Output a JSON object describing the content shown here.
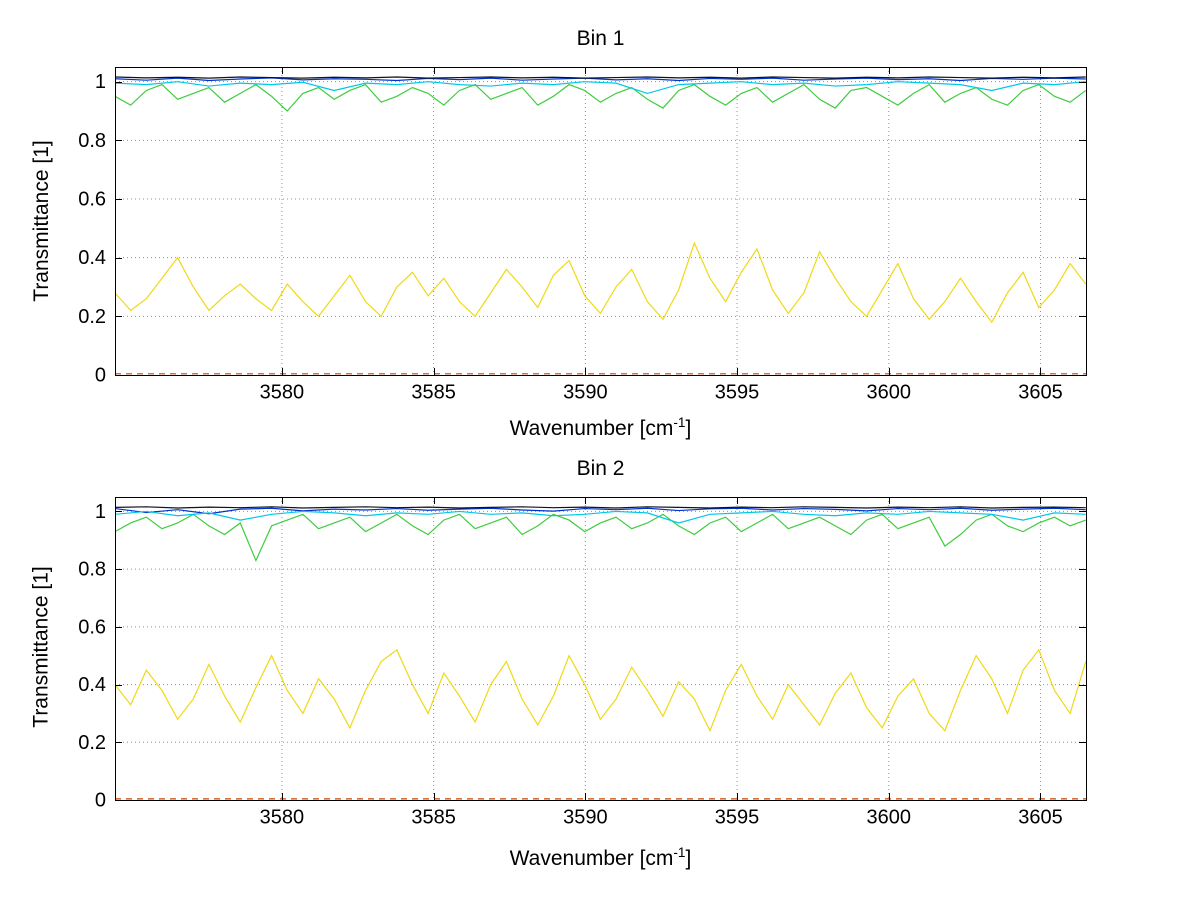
{
  "figure": {
    "background": "#ffffff",
    "axis_color": "#000000",
    "grid_color": "#6e6e6e"
  },
  "chart_data": [
    {
      "type": "line",
      "title": "Bin 1",
      "xlabel": {
        "pre": "Wavenumber [cm",
        "sup": "-1",
        "post": "]"
      },
      "ylabel": "Transmittance [1]",
      "xlim": [
        3574.5,
        3606.5
      ],
      "ylim": [
        0,
        1.05
      ],
      "xticks": [
        3580,
        3585,
        3590,
        3595,
        3600,
        3605
      ],
      "xtick_labels": [
        "3580",
        "3585",
        "3590",
        "3595",
        "3600",
        "3605"
      ],
      "yticks": [
        0,
        0.2,
        0.4,
        0.6,
        0.8,
        1
      ],
      "ytick_labels": [
        "0",
        "0.2",
        "0.4",
        "0.6",
        "0.8",
        "1"
      ],
      "grid": true,
      "legend": null,
      "series": [
        {
          "name": "series-blue",
          "color": "#0033cc",
          "dashed": false,
          "x_start": 3574.5,
          "x_step": 1.032,
          "values": [
            1.01,
            1.005,
            1.012,
            1.004,
            1.009,
            1.013,
            1.006,
            1.01,
            1.008,
            1.004,
            1.011,
            1.007,
            1.012,
            1.005,
            1.009,
            1.012,
            1.006,
            1.01,
            1.004,
            1.011,
            1.008,
            1.012,
            1.005,
            1.009,
            1.012,
            1.007,
            1.01,
            1.004,
            1.011,
            1.008,
            1.012,
            1.009
          ]
        },
        {
          "name": "series-green",
          "color": "#3fcc3f",
          "dashed": false,
          "x_start": 3574.5,
          "x_step": 0.516,
          "values": [
            0.95,
            0.92,
            0.97,
            0.99,
            0.94,
            0.96,
            0.98,
            0.93,
            0.96,
            0.99,
            0.95,
            0.9,
            0.96,
            0.98,
            0.94,
            0.97,
            0.99,
            0.93,
            0.95,
            0.98,
            0.96,
            0.92,
            0.97,
            0.99,
            0.94,
            0.96,
            0.98,
            0.92,
            0.95,
            0.99,
            0.97,
            0.93,
            0.96,
            0.98,
            0.94,
            0.91,
            0.97,
            0.99,
            0.95,
            0.92,
            0.96,
            0.98,
            0.93,
            0.96,
            0.99,
            0.94,
            0.91,
            0.97,
            0.98,
            0.95,
            0.92,
            0.96,
            0.99,
            0.93,
            0.96,
            0.98,
            0.94,
            0.92,
            0.97,
            0.99,
            0.95,
            0.93,
            0.97
          ]
        },
        {
          "name": "series-red",
          "color": "#cc4400",
          "dashed": true,
          "x_start": 3574.5,
          "x_step": 32,
          "values": [
            0.004,
            0.004
          ]
        },
        {
          "name": "series-cyan",
          "color": "#00c8e8",
          "dashed": false,
          "x_start": 3574.5,
          "x_step": 1.032,
          "values": [
            0.995,
            0.99,
            1.0,
            0.985,
            0.995,
            0.99,
            0.998,
            0.97,
            0.995,
            0.99,
            1.0,
            0.99,
            0.985,
            0.995,
            0.99,
            1.0,
            0.995,
            0.96,
            0.99,
            0.995,
            1.0,
            0.99,
            0.995,
            0.985,
            0.99,
            1.0,
            0.995,
            0.99,
            0.97,
            0.995,
            0.99,
            1.0
          ]
        },
        {
          "name": "series-yellow",
          "color": "#efd915",
          "dashed": false,
          "x_start": 3574.5,
          "x_step": 0.516,
          "values": [
            0.28,
            0.22,
            0.26,
            0.33,
            0.4,
            0.3,
            0.22,
            0.27,
            0.31,
            0.26,
            0.22,
            0.31,
            0.25,
            0.2,
            0.27,
            0.34,
            0.25,
            0.2,
            0.3,
            0.35,
            0.27,
            0.33,
            0.25,
            0.2,
            0.28,
            0.36,
            0.3,
            0.23,
            0.34,
            0.39,
            0.27,
            0.21,
            0.3,
            0.36,
            0.25,
            0.19,
            0.29,
            0.45,
            0.33,
            0.25,
            0.35,
            0.43,
            0.29,
            0.21,
            0.28,
            0.42,
            0.33,
            0.25,
            0.2,
            0.29,
            0.38,
            0.26,
            0.19,
            0.25,
            0.33,
            0.25,
            0.18,
            0.28,
            0.35,
            0.23,
            0.29,
            0.38,
            0.31
          ]
        },
        {
          "name": "series-black",
          "color": "#10131a",
          "dashed": false,
          "x_start": 3574.5,
          "x_step": 1.032,
          "values": [
            1.016,
            1.013,
            1.015,
            1.012,
            1.016,
            1.014,
            1.012,
            1.015,
            1.013,
            1.016,
            1.012,
            1.014,
            1.016,
            1.013,
            1.015,
            1.012,
            1.014,
            1.016,
            1.013,
            1.015,
            1.012,
            1.016,
            1.014,
            1.012,
            1.015,
            1.013,
            1.016,
            1.014,
            1.012,
            1.015,
            1.013,
            1.016
          ]
        }
      ]
    },
    {
      "type": "line",
      "title": "Bin 2",
      "xlabel": {
        "pre": "Wavenumber [cm",
        "sup": "-1",
        "post": "]"
      },
      "ylabel": "Transmittance [1]",
      "xlim": [
        3574.5,
        3606.5
      ],
      "ylim": [
        0,
        1.05
      ],
      "xticks": [
        3580,
        3585,
        3590,
        3595,
        3600,
        3605
      ],
      "xtick_labels": [
        "3580",
        "3585",
        "3590",
        "3595",
        "3600",
        "3605"
      ],
      "yticks": [
        0,
        0.2,
        0.4,
        0.6,
        0.8,
        1
      ],
      "ytick_labels": [
        "0",
        "0.2",
        "0.4",
        "0.6",
        "0.8",
        "1"
      ],
      "grid": true,
      "legend": null,
      "series": [
        {
          "name": "series-blue",
          "color": "#0033cc",
          "dashed": false,
          "x_start": 3574.5,
          "x_step": 1.032,
          "values": [
            1.01,
            0.996,
            1.006,
            0.992,
            1.008,
            1.011,
            1.002,
            1.008,
            1.005,
            1.01,
            1.004,
            1.008,
            1.011,
            1.005,
            1.001,
            1.01,
            1.006,
            1.011,
            1.003,
            1.009,
            1.011,
            1.005,
            1.01,
            1.007,
            1.002,
            1.01,
            1.006,
            1.011,
            1.004,
            1.008,
            1.011,
            1.006
          ]
        },
        {
          "name": "series-green",
          "color": "#3fcc3f",
          "dashed": false,
          "x_start": 3574.5,
          "x_step": 0.516,
          "values": [
            0.93,
            0.96,
            0.98,
            0.94,
            0.96,
            0.99,
            0.95,
            0.92,
            0.96,
            0.83,
            0.95,
            0.97,
            0.99,
            0.94,
            0.96,
            0.98,
            0.93,
            0.96,
            0.99,
            0.95,
            0.92,
            0.97,
            0.99,
            0.94,
            0.96,
            0.98,
            0.92,
            0.95,
            0.99,
            0.97,
            0.93,
            0.96,
            0.98,
            0.94,
            0.96,
            0.99,
            0.95,
            0.92,
            0.96,
            0.98,
            0.93,
            0.96,
            0.99,
            0.94,
            0.96,
            0.98,
            0.95,
            0.92,
            0.97,
            0.99,
            0.94,
            0.96,
            0.98,
            0.88,
            0.92,
            0.97,
            0.99,
            0.95,
            0.93,
            0.96,
            0.98,
            0.95,
            0.97
          ]
        },
        {
          "name": "series-red",
          "color": "#cc4400",
          "dashed": true,
          "x_start": 3574.5,
          "x_step": 32,
          "values": [
            0.004,
            0.004
          ]
        },
        {
          "name": "series-cyan",
          "color": "#00c8e8",
          "dashed": false,
          "x_start": 3574.5,
          "x_step": 1.032,
          "values": [
            0.99,
            1.0,
            0.985,
            0.995,
            0.97,
            0.99,
            1.0,
            0.995,
            0.985,
            0.995,
            0.99,
            1.0,
            0.99,
            0.995,
            0.985,
            0.99,
            1.0,
            0.995,
            0.96,
            0.99,
            0.995,
            1.0,
            0.99,
            0.985,
            0.995,
            0.99,
            1.0,
            0.995,
            0.99,
            0.97,
            0.995,
            0.99
          ]
        },
        {
          "name": "series-yellow",
          "color": "#efd915",
          "dashed": false,
          "x_start": 3574.5,
          "x_step": 0.516,
          "values": [
            0.4,
            0.33,
            0.45,
            0.38,
            0.28,
            0.35,
            0.47,
            0.36,
            0.27,
            0.39,
            0.5,
            0.38,
            0.3,
            0.42,
            0.35,
            0.25,
            0.38,
            0.48,
            0.52,
            0.4,
            0.3,
            0.44,
            0.36,
            0.27,
            0.4,
            0.48,
            0.35,
            0.26,
            0.36,
            0.5,
            0.4,
            0.28,
            0.35,
            0.46,
            0.38,
            0.29,
            0.41,
            0.35,
            0.24,
            0.38,
            0.47,
            0.36,
            0.28,
            0.4,
            0.33,
            0.26,
            0.37,
            0.44,
            0.32,
            0.25,
            0.36,
            0.42,
            0.3,
            0.24,
            0.38,
            0.5,
            0.42,
            0.3,
            0.45,
            0.52,
            0.38,
            0.3,
            0.48
          ]
        },
        {
          "name": "series-black",
          "color": "#10131a",
          "dashed": false,
          "x_start": 3574.5,
          "x_step": 1.032,
          "values": [
            1.014,
            1.016,
            1.012,
            1.015,
            1.013,
            1.016,
            1.012,
            1.014,
            1.016,
            1.013,
            1.015,
            1.012,
            1.014,
            1.016,
            1.013,
            1.015,
            1.012,
            1.016,
            1.014,
            1.012,
            1.015,
            1.013,
            1.016,
            1.014,
            1.012,
            1.015,
            1.013,
            1.016,
            1.012,
            1.014,
            1.015,
            1.013
          ]
        }
      ]
    }
  ]
}
